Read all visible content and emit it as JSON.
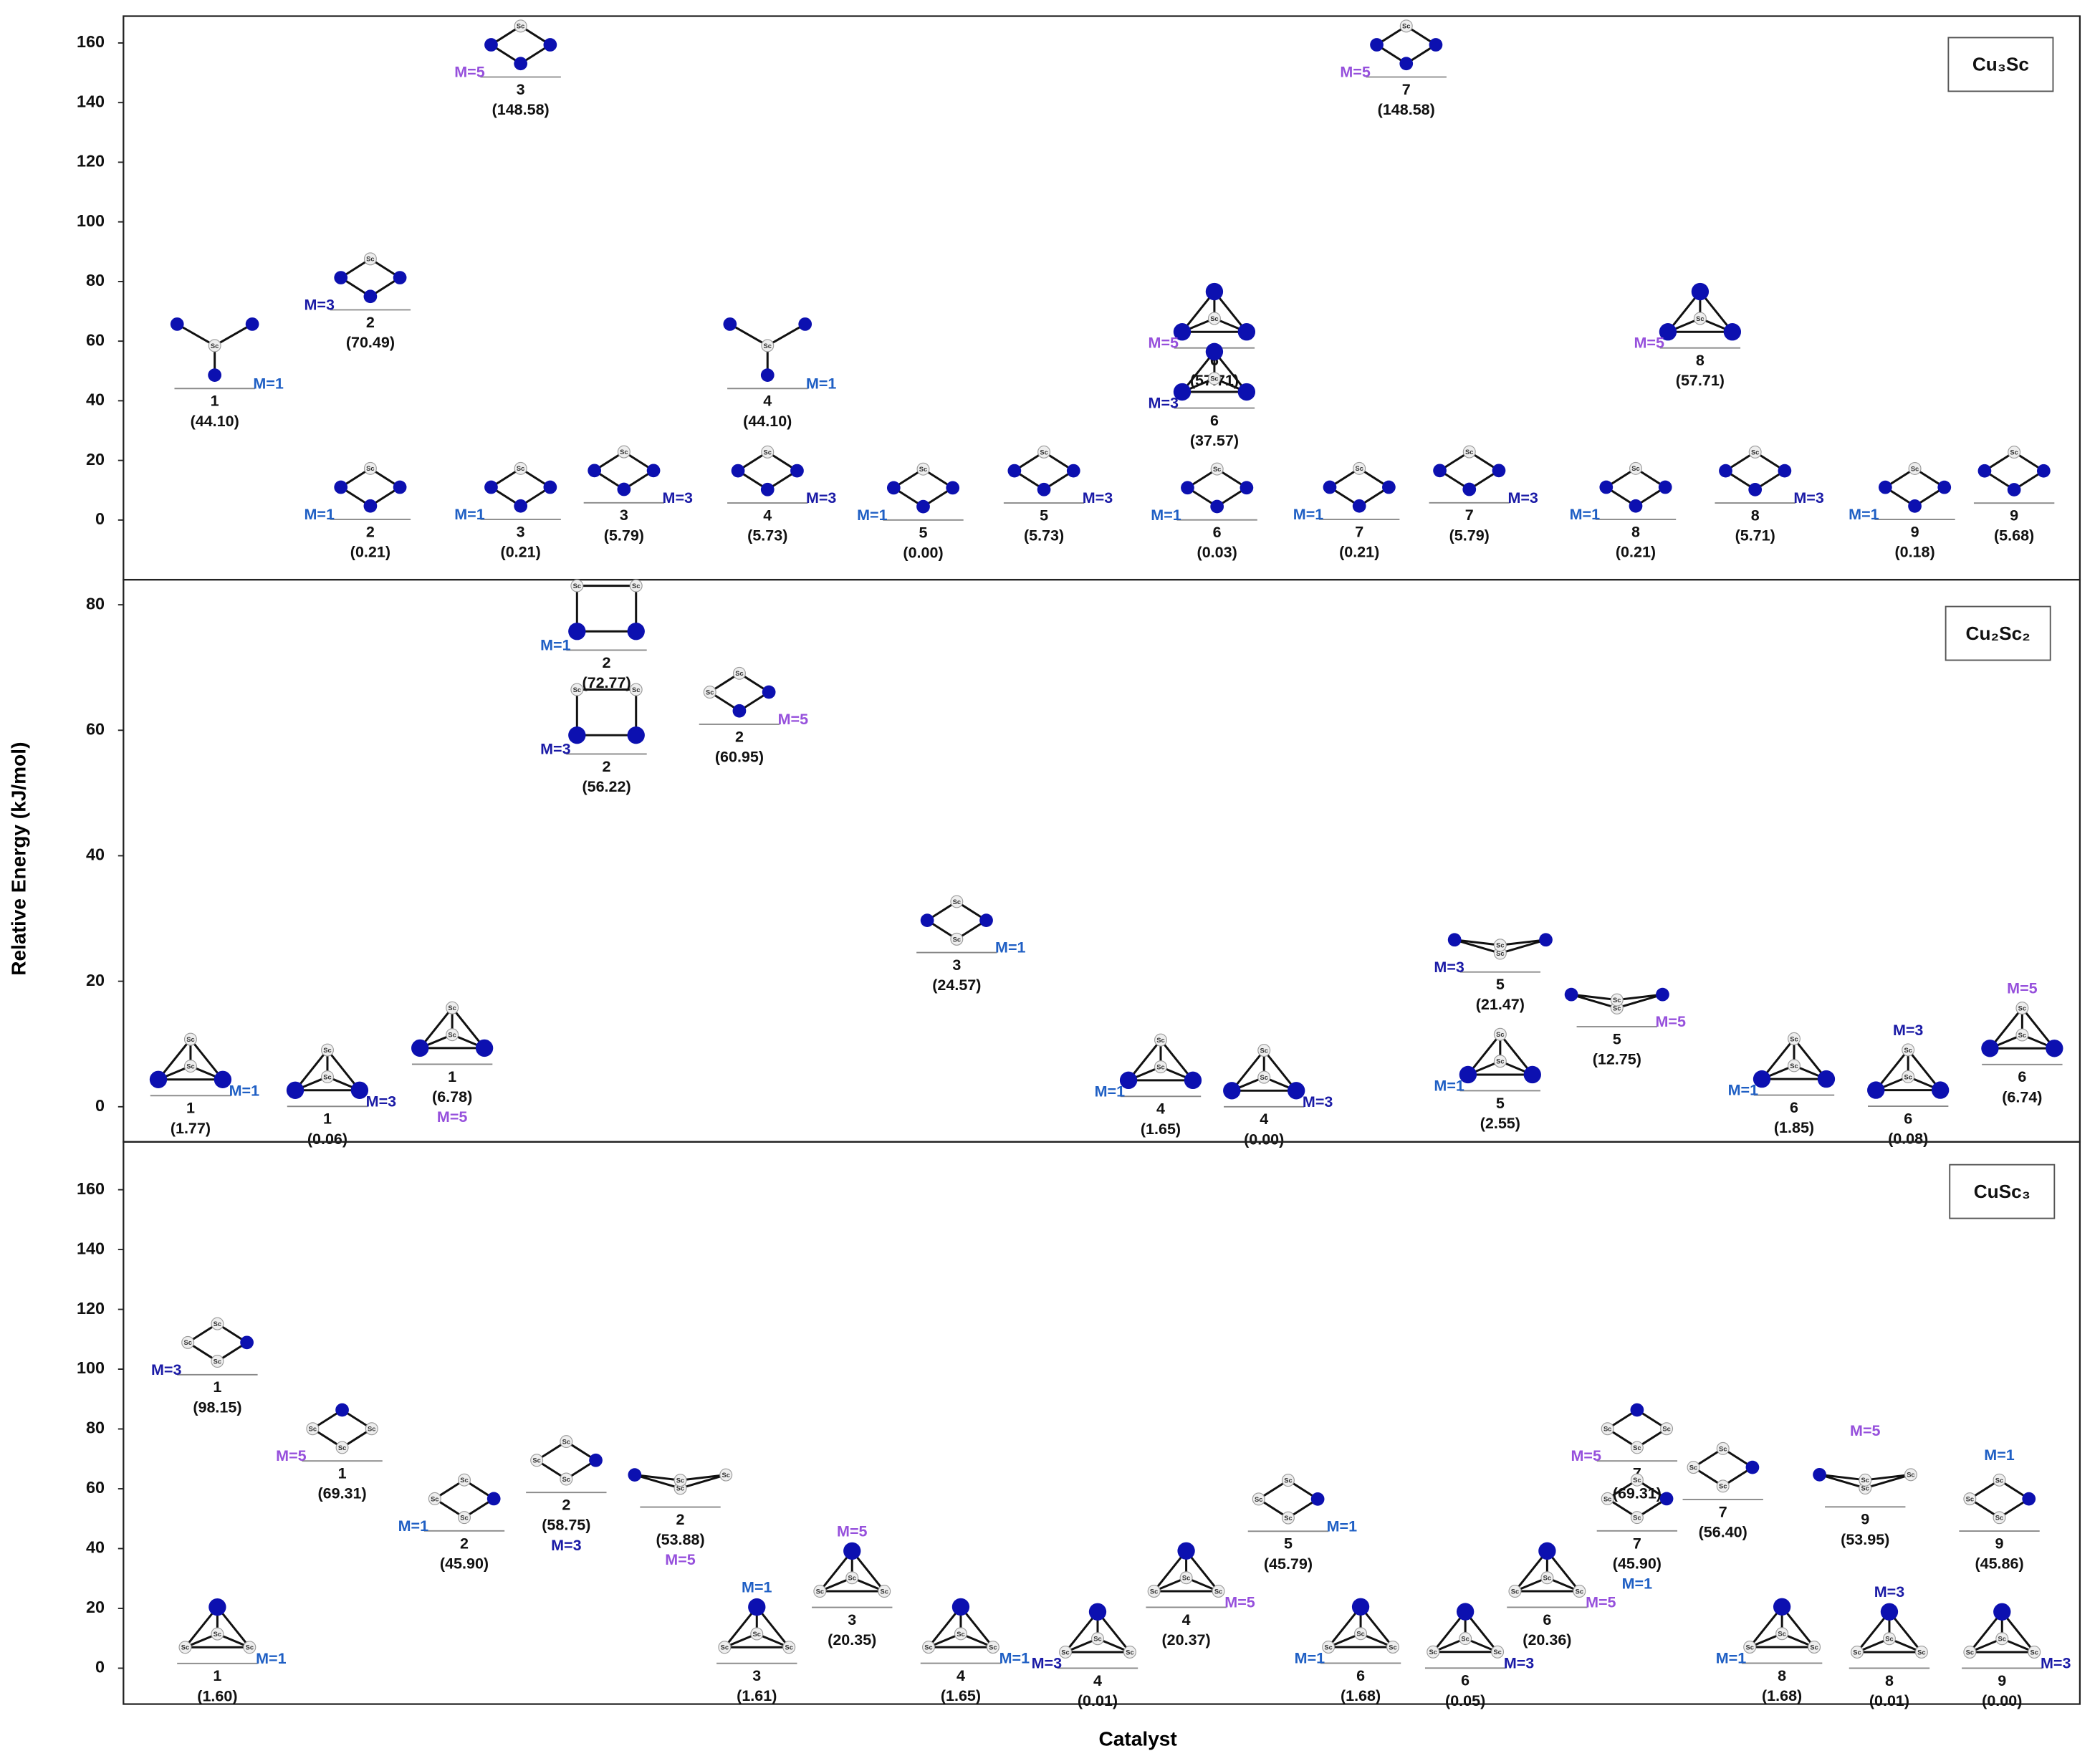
{
  "figure": {
    "xlabel": "Catalyst",
    "ylabel": "Relative Energy (kJ/mol)",
    "atom_label": "Sc",
    "multiplicity_colors": {
      "M=1": "#1f5fc4",
      "M=3": "#1a1aa6",
      "M=5": "#9650dc"
    }
  },
  "chart_data": [
    {
      "type": "energy-levels",
      "title": "Cu₃Sc",
      "ylim": [
        -20,
        169
      ],
      "yticks": [
        0,
        20,
        40,
        60,
        80,
        100,
        120,
        140,
        160
      ],
      "ids": [
        "1",
        "2",
        "2",
        "3",
        "3",
        "3",
        "4",
        "4",
        "5",
        "5",
        "6",
        "6",
        "6",
        "7",
        "7",
        "7",
        "8",
        "8",
        "8",
        "9",
        "9"
      ],
      "values": [
        44.1,
        70.49,
        0.21,
        148.58,
        0.21,
        5.79,
        44.1,
        5.73,
        0,
        5.73,
        57.71,
        37.57,
        0.03,
        148.58,
        0.21,
        5.79,
        57.71,
        0.21,
        5.71,
        0.18,
        5.68
      ],
      "value_labels": [
        "(44.10)",
        "(70.49)",
        "(0.21)",
        "(148.58)",
        "(0.21)",
        "(5.79)",
        "(44.10)",
        "(5.73)",
        "(0.00)",
        "(5.73)",
        "(57.71)",
        "(37.57)",
        "(0.03)",
        "(148.58)",
        "(0.21)",
        "(5.79)",
        "(57.71)",
        "(0.21)",
        "(5.71)",
        "(0.18)",
        "(5.68)"
      ],
      "multiplicities": [
        "M=1",
        "M=3",
        "M=1",
        "M=5",
        "M=1",
        "M=3",
        "M=1",
        "M=3",
        "M=1",
        "M=3",
        "M=5",
        "M=3",
        "M=1",
        "M=5",
        "M=1",
        "M=3",
        "M=5",
        "M=1",
        "M=3",
        "M=1",
        null
      ]
    },
    {
      "type": "energy-levels",
      "title": "Cu₂Sc₂",
      "ylim": [
        -5.6,
        84
      ],
      "yticks": [
        0,
        20,
        40,
        60,
        80
      ],
      "ids": [
        "1",
        "1",
        "1",
        "2",
        "2",
        "2",
        "3",
        "4",
        "4",
        "5",
        "5",
        "5",
        "6",
        "6",
        "6"
      ],
      "values": [
        1.77,
        0.06,
        6.78,
        72.77,
        56.22,
        60.95,
        24.57,
        1.65,
        0,
        21.47,
        2.55,
        12.75,
        1.85,
        0.08,
        6.74
      ],
      "value_labels": [
        "(1.77)",
        "(0.06)",
        "(6.78)",
        "(72.77)",
        "(56.22)",
        "(60.95)",
        "(24.57)",
        "(1.65)",
        "(0.00)",
        "(21.47)",
        "(2.55)",
        "(12.75)",
        "(1.85)",
        "(0.08)",
        "(6.74)"
      ],
      "multiplicities": [
        "M=1",
        "M=3",
        "M=5",
        "M=1",
        "M=3",
        "M=5",
        "M=1",
        "M=1",
        "M=3",
        "M=3",
        "M=1",
        "M=5",
        "M=1",
        "M=3",
        "M=5"
      ]
    },
    {
      "type": "energy-levels",
      "title": "CuSc₃",
      "ylim": [
        -12,
        176
      ],
      "yticks": [
        0,
        20,
        40,
        60,
        80,
        100,
        120,
        140,
        160
      ],
      "ids": [
        "1",
        "1",
        "1",
        "2",
        "2",
        "2",
        "3",
        "3",
        "4",
        "4",
        "4",
        "5",
        "6",
        "6",
        "6",
        "7",
        "7",
        "7",
        "8",
        "8",
        "9",
        "9",
        "9"
      ],
      "values": [
        98.15,
        1.6,
        69.31,
        45.9,
        58.75,
        53.88,
        1.61,
        20.35,
        1.65,
        0.01,
        20.37,
        45.79,
        1.68,
        0.05,
        20.36,
        69.31,
        45.9,
        56.4,
        1.68,
        0.01,
        0,
        53.95,
        45.86
      ],
      "value_labels": [
        "(98.15)",
        "(1.60)",
        "(69.31)",
        "(45.90)",
        "(58.75)",
        "(53.88)",
        "(1.61)",
        "(20.35)",
        "(1.65)",
        "(0.01)",
        "(20.37)",
        "(45.79)",
        "(1.68)",
        "(0.05)",
        "(20.36)",
        "(69.31)",
        "(45.90)",
        "(56.40)",
        "(1.68)",
        "(0.01)",
        "(0.00)",
        "(53.95)",
        "(45.86)"
      ],
      "multiplicities": [
        "M=3",
        "M=1",
        "M=5",
        "M=1",
        "M=3",
        "M=5",
        "M=1",
        "M=5",
        "M=1",
        "M=3",
        "M=5",
        "M=1",
        "M=1",
        "M=3",
        "M=5",
        "M=5",
        "M=1",
        null,
        "M=1",
        "M=3",
        "M=3",
        "M=5",
        "M=1"
      ]
    }
  ]
}
